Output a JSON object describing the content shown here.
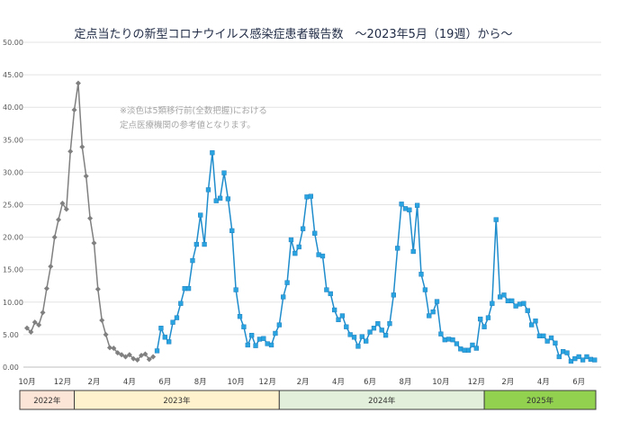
{
  "chart_data": {
    "type": "line",
    "title": "定点当たりの新型コロナウイルス感染症患者報告数　～2023年5月（19週）から～",
    "annotation": [
      "※淡色は5類移行前(全数把握)における",
      "定点医療機関の参考値となります。"
    ],
    "ylim": [
      0,
      50
    ],
    "yticks": [
      "0.00",
      "5.00",
      "10.00",
      "15.00",
      "20.00",
      "25.00",
      "30.00",
      "35.00",
      "40.00",
      "45.00",
      "50.00"
    ],
    "x_tick_labels": [
      {
        "label": "10月",
        "index": 0
      },
      {
        "label": "12月",
        "index": 9
      },
      {
        "label": "2月",
        "index": 17
      },
      {
        "label": "4月",
        "index": 26
      },
      {
        "label": "6月",
        "index": 35
      },
      {
        "label": "8月",
        "index": 44
      },
      {
        "label": "10月",
        "index": 53
      },
      {
        "label": "12月",
        "index": 61
      },
      {
        "label": "2月",
        "index": 70
      },
      {
        "label": "4月",
        "index": 79
      },
      {
        "label": "6月",
        "index": 87
      },
      {
        "label": "8月",
        "index": 96
      },
      {
        "label": "10月",
        "index": 105
      },
      {
        "label": "12月",
        "index": 114
      },
      {
        "label": "2月",
        "index": 122
      },
      {
        "label": "4月",
        "index": 131
      },
      {
        "label": "6月",
        "index": 140
      }
    ],
    "year_bands": [
      {
        "label": "2022年",
        "start": -2,
        "end": 12,
        "color": "#fce4d6"
      },
      {
        "label": "2023年",
        "start": 12,
        "end": 64,
        "color": "#fff2cc"
      },
      {
        "label": "2024年",
        "start": 64,
        "end": 116,
        "color": "#e2efda"
      },
      {
        "label": "2025年",
        "start": 116,
        "end": 147,
        "color": "#92d050"
      }
    ],
    "series": [
      {
        "color": "#808080",
        "marker": "diamond",
        "start_index": 0,
        "values": [
          6.0,
          5.4,
          6.9,
          6.5,
          8.4,
          12.1,
          15.5,
          20.0,
          22.7,
          25.2,
          24.3,
          33.2,
          39.6,
          43.7,
          33.9,
          29.4,
          22.9,
          19.1,
          12.0,
          7.2,
          5.0,
          3.0,
          2.9,
          2.2,
          1.9,
          1.6,
          1.9,
          1.3,
          1.1,
          1.8,
          2.0,
          1.2,
          1.6
        ]
      },
      {
        "color": "#1f8ccc",
        "marker": "square",
        "start_index": 33,
        "values": [
          2.5,
          6.0,
          4.6,
          3.9,
          6.9,
          7.6,
          9.8,
          12.1,
          12.1,
          16.4,
          18.9,
          23.4,
          18.9,
          27.3,
          33.0,
          25.6,
          26.0,
          29.9,
          25.9,
          21.0,
          11.9,
          7.8,
          6.2,
          3.4,
          4.9,
          3.3,
          4.3,
          4.4,
          3.6,
          3.4,
          5.2,
          6.5,
          10.8,
          13.0,
          19.6,
          17.5,
          18.5,
          21.3,
          26.2,
          26.3,
          20.6,
          17.3,
          17.1,
          11.9,
          11.3,
          8.8,
          7.3,
          7.9,
          6.2,
          5.0,
          4.6,
          3.2,
          4.7,
          4.0,
          5.4,
          6.0,
          6.7,
          5.7,
          4.9,
          6.7,
          11.1,
          18.3,
          25.1,
          24.4,
          24.2,
          17.8,
          24.9,
          14.3,
          11.9,
          7.9,
          8.5,
          10.1,
          5.1,
          4.2,
          4.3,
          4.2,
          3.6,
          2.8,
          2.6,
          2.6,
          3.4,
          2.9,
          7.4,
          6.2,
          7.6,
          9.8,
          22.7,
          10.8,
          11.1,
          10.2,
          10.2,
          9.4,
          9.7,
          9.8,
          8.7,
          6.5,
          7.1,
          4.8,
          4.8,
          4.0,
          4.5,
          3.7,
          1.6,
          2.4,
          2.2,
          0.9,
          1.3,
          1.6,
          1.1,
          1.6,
          1.2,
          1.1
        ]
      }
    ]
  }
}
